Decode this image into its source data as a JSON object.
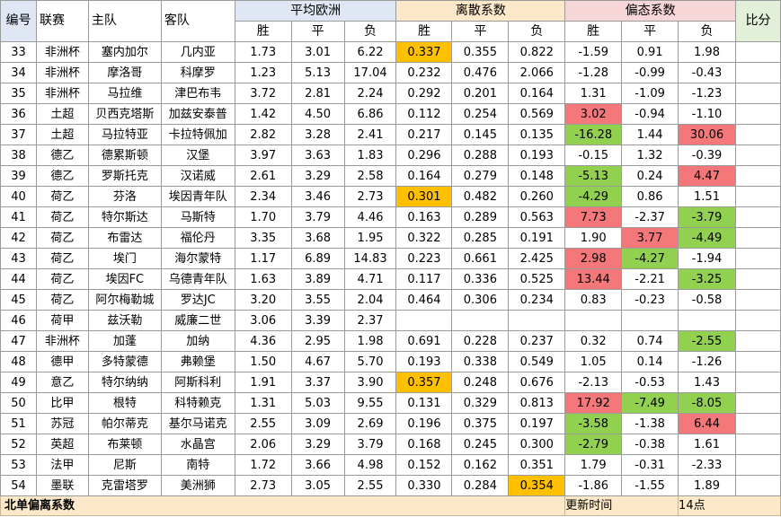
{
  "header": {
    "id": "编号",
    "league": "联赛",
    "home": "主队",
    "away": "客队",
    "avg_odds": "平均欧洲",
    "dispersion": "离散系数",
    "bias": "偏态系数",
    "ratio": "比分",
    "sub": [
      "胜",
      "平",
      "负",
      "胜",
      "平",
      "负",
      "胜",
      "平",
      "负"
    ]
  },
  "rows": [
    {
      "id": "33",
      "league": "非洲杯",
      "home": "塞内加尔",
      "away": "几内亚",
      "o": [
        "1.73",
        "3.01",
        "6.22"
      ],
      "d": [
        "0.337",
        "0.355",
        "0.822"
      ],
      "b": [
        "-1.59",
        "0.91",
        "1.98"
      ]
    },
    {
      "id": "34",
      "league": "非洲杯",
      "home": "摩洛哥",
      "away": "科摩罗",
      "o": [
        "1.23",
        "5.13",
        "17.04"
      ],
      "d": [
        "0.232",
        "0.476",
        "2.066"
      ],
      "b": [
        "-1.28",
        "-0.99",
        "-0.43"
      ]
    },
    {
      "id": "35",
      "league": "非洲杯",
      "home": "马拉维",
      "away": "津巴布韦",
      "o": [
        "3.72",
        "2.81",
        "2.24"
      ],
      "d": [
        "0.292",
        "0.201",
        "0.164"
      ],
      "b": [
        "1.31",
        "-1.09",
        "-1.23"
      ]
    },
    {
      "id": "36",
      "league": "土超",
      "home": "贝西克塔斯",
      "away": "加兹安泰普",
      "o": [
        "1.42",
        "4.50",
        "6.86"
      ],
      "d": [
        "0.112",
        "0.254",
        "0.569"
      ],
      "b": [
        "3.02",
        "-0.94",
        "-1.10"
      ]
    },
    {
      "id": "37",
      "league": "土超",
      "home": "马拉特亚",
      "away": "卡拉特佩加",
      "o": [
        "2.82",
        "3.28",
        "2.41"
      ],
      "d": [
        "0.217",
        "0.145",
        "0.135"
      ],
      "b": [
        "-16.28",
        "1.44",
        "30.06"
      ]
    },
    {
      "id": "38",
      "league": "德乙",
      "home": "德累斯顿",
      "away": "汉堡",
      "o": [
        "3.97",
        "3.63",
        "1.83"
      ],
      "d": [
        "0.296",
        "0.288",
        "0.193"
      ],
      "b": [
        "-0.15",
        "1.32",
        "-0.39"
      ]
    },
    {
      "id": "39",
      "league": "德乙",
      "home": "罗斯托克",
      "away": "汉诺威",
      "o": [
        "2.61",
        "3.29",
        "2.58"
      ],
      "d": [
        "0.164",
        "0.279",
        "0.148"
      ],
      "b": [
        "-5.13",
        "0.24",
        "4.47"
      ]
    },
    {
      "id": "40",
      "league": "荷乙",
      "home": "芬洛",
      "away": "埃因青年队",
      "o": [
        "2.34",
        "3.46",
        "2.73"
      ],
      "d": [
        "0.301",
        "0.482",
        "0.260"
      ],
      "b": [
        "-4.29",
        "0.86",
        "1.51"
      ]
    },
    {
      "id": "41",
      "league": "荷乙",
      "home": "特尔斯达",
      "away": "马斯特",
      "o": [
        "1.70",
        "3.79",
        "4.46"
      ],
      "d": [
        "0.163",
        "0.289",
        "0.563"
      ],
      "b": [
        "7.73",
        "-2.37",
        "-3.79"
      ]
    },
    {
      "id": "42",
      "league": "荷乙",
      "home": "布雷达",
      "away": "福伦丹",
      "o": [
        "3.35",
        "3.68",
        "1.95"
      ],
      "d": [
        "0.322",
        "0.285",
        "0.191"
      ],
      "b": [
        "1.90",
        "3.77",
        "-4.49"
      ]
    },
    {
      "id": "43",
      "league": "荷乙",
      "home": "埃门",
      "away": "海尔蒙特",
      "o": [
        "1.17",
        "6.89",
        "14.83"
      ],
      "d": [
        "0.223",
        "0.661",
        "2.425"
      ],
      "b": [
        "2.98",
        "-4.27",
        "-1.94"
      ]
    },
    {
      "id": "44",
      "league": "荷乙",
      "home": "埃因FC",
      "away": "乌德青年队",
      "o": [
        "1.63",
        "3.89",
        "4.71"
      ],
      "d": [
        "0.117",
        "0.336",
        "0.525"
      ],
      "b": [
        "13.44",
        "-2.21",
        "-3.25"
      ]
    },
    {
      "id": "45",
      "league": "荷乙",
      "home": "阿尔梅勒城",
      "away": "罗达JC",
      "o": [
        "3.20",
        "3.55",
        "2.04"
      ],
      "d": [
        "0.464",
        "0.306",
        "0.234"
      ],
      "b": [
        "0.83",
        "-0.23",
        "-0.58"
      ]
    },
    {
      "id": "46",
      "league": "荷甲",
      "home": "兹沃勒",
      "away": "威廉二世",
      "o": [
        "3.06",
        "3.39",
        "2.37"
      ],
      "d": [
        "",
        "",
        ""
      ],
      "b": [
        "",
        "",
        ""
      ]
    },
    {
      "id": "47",
      "league": "非洲杯",
      "home": "加蓬",
      "away": "加纳",
      "o": [
        "4.36",
        "2.95",
        "1.98"
      ],
      "d": [
        "0.691",
        "0.228",
        "0.237"
      ],
      "b": [
        "0.32",
        "0.74",
        "-2.55"
      ]
    },
    {
      "id": "48",
      "league": "德甲",
      "home": "多特蒙德",
      "away": "弗赖堡",
      "o": [
        "1.50",
        "4.67",
        "5.70"
      ],
      "d": [
        "0.193",
        "0.338",
        "0.549"
      ],
      "b": [
        "1.05",
        "0.14",
        "-1.26"
      ]
    },
    {
      "id": "49",
      "league": "意乙",
      "home": "特尔纳纳",
      "away": "阿斯科利",
      "o": [
        "1.91",
        "3.37",
        "3.90"
      ],
      "d": [
        "0.357",
        "0.248",
        "0.676"
      ],
      "b": [
        "-2.13",
        "-0.53",
        "1.43"
      ]
    },
    {
      "id": "50",
      "league": "比甲",
      "home": "根特",
      "away": "科特赖克",
      "o": [
        "1.31",
        "5.03",
        "9.55"
      ],
      "d": [
        "0.131",
        "0.329",
        "0.813"
      ],
      "b": [
        "17.92",
        "-7.49",
        "-8.05"
      ]
    },
    {
      "id": "51",
      "league": "苏冠",
      "home": "帕尔蒂克",
      "away": "基尔马诺克",
      "o": [
        "2.55",
        "3.09",
        "2.69"
      ],
      "d": [
        "0.196",
        "0.375",
        "0.197"
      ],
      "b": [
        "-3.58",
        "-1.38",
        "6.44"
      ]
    },
    {
      "id": "52",
      "league": "英超",
      "home": "布莱顿",
      "away": "水晶宫",
      "o": [
        "2.06",
        "3.29",
        "3.79"
      ],
      "d": [
        "0.168",
        "0.245",
        "0.300"
      ],
      "b": [
        "-2.79",
        "-0.38",
        "1.61"
      ]
    },
    {
      "id": "53",
      "league": "法甲",
      "home": "尼斯",
      "away": "南特",
      "o": [
        "1.72",
        "3.66",
        "4.98"
      ],
      "d": [
        "0.152",
        "0.162",
        "0.351"
      ],
      "b": [
        "1.79",
        "-0.31",
        "-2.33"
      ]
    },
    {
      "id": "54",
      "league": "墨联",
      "home": "克雷塔罗",
      "away": "美洲狮",
      "o": [
        "2.73",
        "3.05",
        "2.55"
      ],
      "d": [
        "0.330",
        "0.284",
        "0.354"
      ],
      "b": [
        "-1.86",
        "-1.55",
        "1.89"
      ]
    }
  ],
  "highlights": {
    "orange": [
      [
        0,
        "d",
        0
      ],
      [
        7,
        "d",
        0
      ],
      [
        16,
        "d",
        0
      ],
      [
        21,
        "d",
        2
      ]
    ],
    "red": [
      [
        3,
        "b",
        0
      ],
      [
        4,
        "b",
        2
      ],
      [
        6,
        "b",
        2
      ],
      [
        8,
        "b",
        0
      ],
      [
        9,
        "b",
        1
      ],
      [
        10,
        "b",
        0
      ],
      [
        11,
        "b",
        0
      ],
      [
        17,
        "b",
        0
      ],
      [
        18,
        "b",
        2
      ]
    ],
    "green": [
      [
        4,
        "b",
        0
      ],
      [
        6,
        "b",
        0
      ],
      [
        7,
        "b",
        0
      ],
      [
        8,
        "b",
        2
      ],
      [
        9,
        "b",
        2
      ],
      [
        10,
        "b",
        1
      ],
      [
        11,
        "b",
        2
      ],
      [
        14,
        "b",
        2
      ],
      [
        17,
        "b",
        1
      ],
      [
        17,
        "b",
        2
      ],
      [
        18,
        "b",
        0
      ],
      [
        19,
        "b",
        0
      ]
    ]
  },
  "colors": {
    "orange": "#ffc000",
    "red": "#f4777a",
    "green": "#92d050"
  },
  "footer": {
    "title": "北单偏离系数",
    "update_label": "更新时间",
    "update_value": "14点"
  }
}
